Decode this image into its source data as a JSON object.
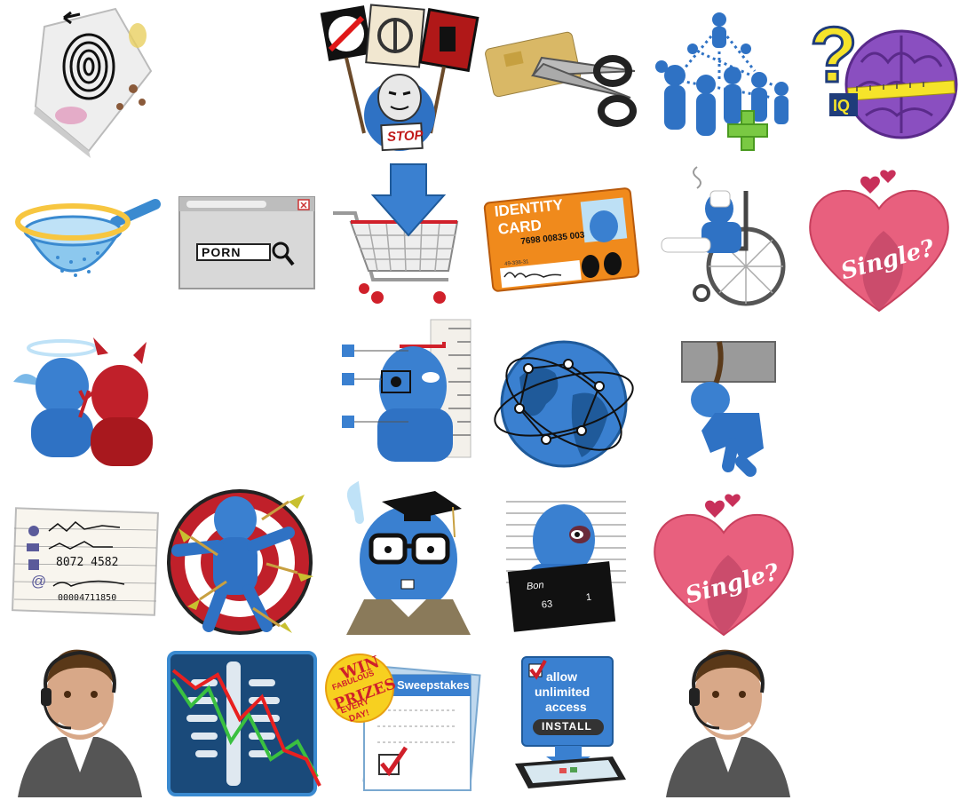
{
  "icons": {
    "protest": {
      "sign": "STOP"
    },
    "iq_brain": {
      "label": "IQ",
      "mark": "?"
    },
    "browser_search": {
      "query": "PORN"
    },
    "identity_card": {
      "title_line1": "IDENTITY",
      "title_line2": "CARD",
      "number": "7698 00835 003",
      "small": "49-338-31"
    },
    "heart_single": {
      "text": "Single?"
    },
    "heart_single_2": {
      "text": "Single?"
    },
    "contact_note": {
      "line1": "8072 4582",
      "line2": "00004711850",
      "at": "@"
    },
    "mugshot": {
      "board_row1": "Bon",
      "board_row2": "63",
      "board_row3": "1"
    },
    "sweepstakes": {
      "win": "WIN",
      "fabulous": "FABULOUS",
      "prizes": "PRIZES",
      "every": "EVERY",
      "day": "DAY!",
      "form_title": "Sweepstakes"
    },
    "allow_access": {
      "line1": "allow",
      "line2": "unlimited",
      "line3": "access",
      "button": "INSTALL"
    }
  },
  "colors": {
    "figure_blue": "#2f72c4",
    "devil_red": "#c0202a",
    "heart_pink": "#e8607e",
    "card_orange": "#f08a1c",
    "brain_purple": "#8a4fc0",
    "cross_green": "#7ac943"
  }
}
